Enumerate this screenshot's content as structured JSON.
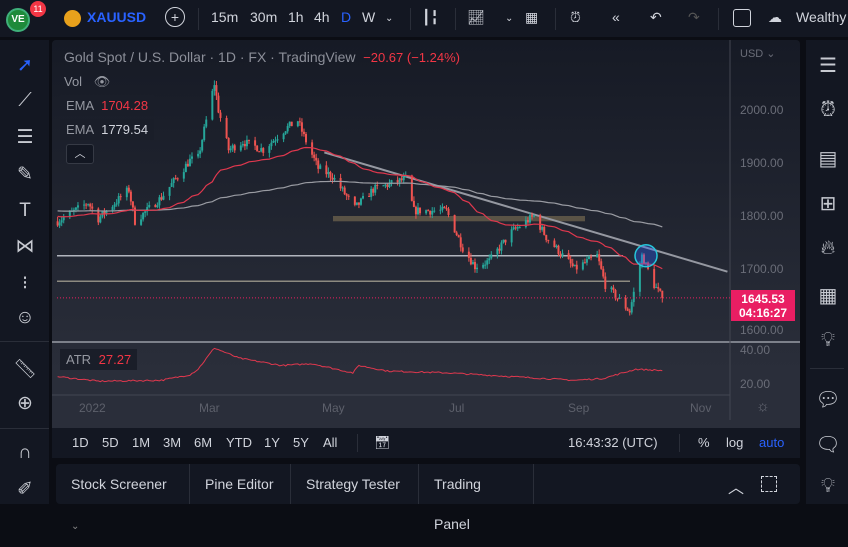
{
  "topbar": {
    "notifications": "11",
    "symbol": "XAUUSD",
    "intervals": [
      "15m",
      "30m",
      "1h",
      "4h",
      "D",
      "W"
    ],
    "active_interval": "D",
    "layout_name": "Wealthy"
  },
  "legend": {
    "title": "Gold Spot / U.S. Dollar · 1D · FX · TradingView",
    "change": "−20.67 (−1.24%)",
    "vol_label": "Vol",
    "ema1_label": "EMA",
    "ema1_value": "1704.28",
    "ema2_label": "EMA",
    "ema2_value": "1779.54",
    "atr_label": "ATR",
    "atr_value": "27.27"
  },
  "price_axis": {
    "currency": "USD",
    "ticks": [
      "2000.00",
      "1900.00",
      "1800.00",
      "1700.00",
      "1600.00"
    ],
    "last_price": "1645.53",
    "countdown": "04:16:27",
    "atr_ticks": [
      "40.00",
      "20.00"
    ]
  },
  "time_axis": [
    "2022",
    "Mar",
    "May",
    "Jul",
    "Sep",
    "Nov"
  ],
  "bottom_bar": {
    "ranges": [
      "1D",
      "5D",
      "1M",
      "3M",
      "6M",
      "YTD",
      "1Y",
      "5Y",
      "All"
    ],
    "clock": "16:43:32 (UTC)",
    "percent": "%",
    "log": "log",
    "auto": "auto"
  },
  "bottom_tabs": [
    "Stock Screener",
    "Pine Editor",
    "Strategy Tester",
    "Trading Panel"
  ],
  "colors": {
    "up": "#26a69a",
    "down": "#ef5350",
    "ema_fast": "#e0384e",
    "ema_slow": "#9a9ca3",
    "accent": "#2962ff",
    "price_label": "#e91e63"
  },
  "chart_data": {
    "type": "candlestick",
    "ylim": [
      1580,
      2110
    ],
    "closes_waypoints": [
      [
        "2021-12-21",
        1790
      ],
      [
        "2022-01-05",
        1825
      ],
      [
        "2022-01-10",
        1795
      ],
      [
        "2022-01-25",
        1850
      ],
      [
        "2022-01-28",
        1790
      ],
      [
        "2022-02-10",
        1835
      ],
      [
        "2022-02-24",
        1905
      ],
      [
        "2022-02-28",
        1910
      ],
      [
        "2022-03-08",
        2050
      ],
      [
        "2022-03-10",
        2000
      ],
      [
        "2022-03-15",
        1925
      ],
      [
        "2022-03-22",
        1940
      ],
      [
        "2022-04-01",
        1925
      ],
      [
        "2022-04-12",
        1965
      ],
      [
        "2022-04-18",
        1980
      ],
      [
        "2022-04-21",
        1950
      ],
      [
        "2022-04-28",
        1890
      ],
      [
        "2022-05-05",
        1875
      ],
      [
        "2022-05-16",
        1815
      ],
      [
        "2022-05-25",
        1850
      ],
      [
        "2022-06-10",
        1870
      ],
      [
        "2022-06-14",
        1810
      ],
      [
        "2022-06-30",
        1810
      ],
      [
        "2022-07-08",
        1740
      ],
      [
        "2022-07-14",
        1705
      ],
      [
        "2022-07-21",
        1715
      ],
      [
        "2022-08-01",
        1770
      ],
      [
        "2022-08-12",
        1800
      ],
      [
        "2022-08-18",
        1760
      ],
      [
        "2022-09-01",
        1700
      ],
      [
        "2022-09-12",
        1725
      ],
      [
        "2022-09-16",
        1670
      ],
      [
        "2022-09-28",
        1620
      ],
      [
        "2022-10-04",
        1725
      ],
      [
        "2022-10-10",
        1670
      ],
      [
        "2022-10-14",
        1645.53
      ]
    ],
    "atr_waypoints": [
      [
        "2021-12-21",
        24
      ],
      [
        "2022-01-10",
        21.5
      ],
      [
        "2022-02-10",
        22
      ],
      [
        "2022-02-24",
        25
      ],
      [
        "2022-02-28",
        28
      ],
      [
        "2022-03-08",
        39.5
      ],
      [
        "2022-03-20",
        34
      ],
      [
        "2022-04-10",
        30
      ],
      [
        "2022-04-25",
        31
      ],
      [
        "2022-05-15",
        26
      ],
      [
        "2022-05-18",
        30
      ],
      [
        "2022-06-01",
        27
      ],
      [
        "2022-07-01",
        26
      ],
      [
        "2022-08-01",
        24
      ],
      [
        "2022-09-01",
        22
      ],
      [
        "2022-09-15",
        23
      ],
      [
        "2022-10-01",
        28
      ],
      [
        "2022-10-14",
        27.27
      ]
    ],
    "atr_ylim": [
      14,
      43
    ],
    "drawings": {
      "trendline": [
        [
          "2022-05-01",
          1920
        ],
        [
          "2022-11-15",
          1695
        ]
      ],
      "horizontal_levels": [
        1725,
        1677
      ],
      "zone": [
        1790,
        1800
      ],
      "circle_at": [
        "2022-10-06",
        1725
      ]
    }
  }
}
